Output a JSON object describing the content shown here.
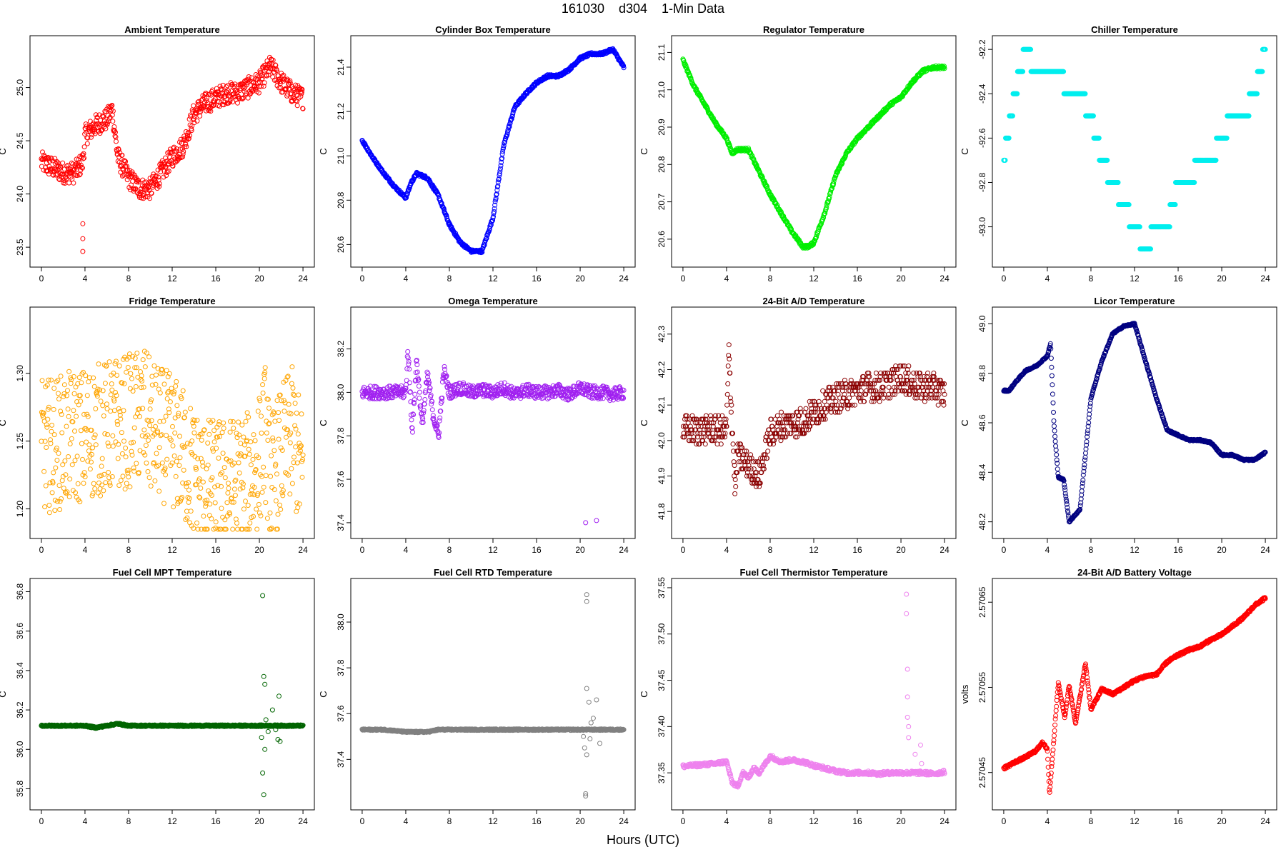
{
  "figure": {
    "title": "161030    d304    1-Min Data",
    "xlabel": "Hours (UTC)"
  },
  "chart_data": [
    {
      "type": "scatter",
      "title": "Ambient Temperature",
      "ylabel": "C",
      "color": "#ff0000",
      "xlim": [
        0,
        24
      ],
      "ylim": [
        23.4,
        25.4
      ],
      "xticks": [
        "0",
        "4",
        "8",
        "12",
        "16",
        "20",
        "24"
      ],
      "yticks": [
        "23.5",
        "24.0",
        "24.5",
        "25.0"
      ],
      "x": [
        0,
        1,
        2,
        3,
        3.8,
        4,
        5,
        6,
        6.5,
        7,
        8,
        9,
        10,
        11,
        12,
        13,
        14,
        15,
        16,
        17,
        18,
        19,
        20,
        21,
        22,
        23,
        24
      ],
      "y": [
        24.3,
        24.25,
        24.2,
        24.2,
        24.3,
        24.55,
        24.65,
        24.7,
        24.8,
        24.35,
        24.15,
        24.05,
        24.05,
        24.2,
        24.35,
        24.45,
        24.75,
        24.85,
        24.9,
        24.95,
        24.95,
        25.0,
        25.05,
        25.2,
        25.05,
        24.95,
        24.9
      ],
      "spread": 0.1,
      "outliers": [
        [
          3.8,
          23.72
        ],
        [
          3.8,
          23.58
        ],
        [
          3.8,
          23.46
        ]
      ]
    },
    {
      "type": "scatter",
      "title": "Cylinder Box Temperature",
      "ylabel": "C",
      "color": "#0000ff",
      "xlim": [
        0,
        24
      ],
      "ylim": [
        20.54,
        21.5
      ],
      "xticks": [
        "0",
        "4",
        "8",
        "12",
        "16",
        "20",
        "24"
      ],
      "yticks": [
        "20.6",
        "20.8",
        "21.0",
        "21.2",
        "21.4"
      ],
      "x": [
        0,
        1,
        2,
        3,
        4,
        4.5,
        5,
        6,
        7,
        8,
        9,
        10,
        11,
        12,
        13,
        14,
        15,
        16,
        17,
        18,
        19,
        20,
        21,
        22,
        23,
        24
      ],
      "y": [
        21.07,
        20.99,
        20.92,
        20.86,
        20.81,
        20.88,
        20.92,
        20.9,
        20.82,
        20.69,
        20.61,
        20.57,
        20.57,
        20.72,
        21.05,
        21.22,
        21.28,
        21.33,
        21.36,
        21.36,
        21.39,
        21.44,
        21.46,
        21.46,
        21.48,
        21.4
      ],
      "spread": 0.006,
      "outliers": []
    },
    {
      "type": "scatter",
      "title": "Regulator Temperature",
      "ylabel": "C",
      "color": "#00ee00",
      "xlim": [
        0,
        24
      ],
      "ylim": [
        20.55,
        21.12
      ],
      "xticks": [
        "0",
        "4",
        "8",
        "12",
        "16",
        "20",
        "24"
      ],
      "yticks": [
        "20.6",
        "20.7",
        "20.8",
        "20.9",
        "21.0",
        "21.1"
      ],
      "x": [
        0,
        1,
        2,
        3,
        4,
        4.5,
        5,
        6,
        7,
        8,
        9,
        10,
        11,
        11.5,
        12,
        13,
        14,
        15,
        16,
        17,
        18,
        19,
        20,
        21,
        22,
        23,
        24
      ],
      "y": [
        21.08,
        21.01,
        20.96,
        20.91,
        20.87,
        20.83,
        20.84,
        20.84,
        20.78,
        20.72,
        20.67,
        20.62,
        20.58,
        20.58,
        20.59,
        20.67,
        20.77,
        20.83,
        20.87,
        20.9,
        20.93,
        20.96,
        20.98,
        21.02,
        21.05,
        21.06,
        21.06
      ],
      "spread": 0.004,
      "outliers": []
    },
    {
      "type": "scatter",
      "title": "Chiller Temperature",
      "ylabel": "C",
      "color": "#00eeee",
      "xlim": [
        0,
        24
      ],
      "ylim": [
        -93.14,
        -92.18
      ],
      "xticks": [
        "0",
        "4",
        "8",
        "12",
        "16",
        "20",
        "24"
      ],
      "yticks": [
        "-92.2",
        "-92.4",
        "-92.6",
        "-92.8",
        "-93.0"
      ],
      "x": [
        0,
        0.3,
        0.7,
        1,
        2,
        3,
        4,
        5,
        6,
        7,
        8,
        9,
        10,
        11,
        12,
        13,
        14,
        15,
        16,
        17,
        18,
        19,
        20,
        21,
        22,
        23,
        24
      ],
      "y": [
        -92.7,
        -92.6,
        -92.5,
        -92.4,
        -92.2,
        -92.3,
        -92.3,
        -92.3,
        -92.4,
        -92.4,
        -92.5,
        -92.7,
        -92.8,
        -92.9,
        -93.0,
        -93.1,
        -93.0,
        -93.0,
        -92.8,
        -92.8,
        -92.7,
        -92.7,
        -92.6,
        -92.5,
        -92.5,
        -92.4,
        -92.2
      ],
      "spread": 0,
      "quantize": 0.1,
      "outliers": []
    },
    {
      "type": "scatter",
      "title": "Fridge Temperature",
      "ylabel": "C",
      "color": "#ffa500",
      "xlim": [
        0,
        24
      ],
      "ylim": [
        1.185,
        1.342
      ],
      "xticks": [
        "0",
        "4",
        "8",
        "12",
        "16",
        "20",
        "24"
      ],
      "yticks": [
        "1.20",
        "1.25",
        "1.30"
      ],
      "x": [
        0,
        2,
        4,
        6,
        8,
        9.5,
        10,
        11,
        12,
        13,
        14,
        15,
        16,
        17,
        18,
        19,
        20,
        20.5,
        21,
        21.5,
        22,
        22.5,
        23,
        23.5,
        24
      ],
      "y": [
        1.245,
        1.25,
        1.255,
        1.26,
        1.265,
        1.27,
        1.26,
        1.255,
        1.25,
        1.24,
        1.225,
        1.218,
        1.217,
        1.218,
        1.219,
        1.222,
        1.235,
        1.26,
        1.22,
        1.23,
        1.24,
        1.25,
        1.255,
        1.24,
        1.222
      ],
      "spread": 0.05,
      "outliers": []
    },
    {
      "type": "scatter",
      "title": "Omega Temperature",
      "ylabel": "C",
      "color": "#a020f0",
      "xlim": [
        0,
        24
      ],
      "ylim": [
        37.37,
        38.35
      ],
      "xticks": [
        "0",
        "4",
        "8",
        "12",
        "16",
        "20",
        "24"
      ],
      "yticks": [
        "37.4",
        "37.6",
        "37.8",
        "38.0",
        "38.2"
      ],
      "x": [
        0,
        1,
        2,
        3,
        4,
        4.2,
        4.6,
        5,
        5.5,
        6,
        6.5,
        7,
        7.5,
        8,
        9,
        10,
        11,
        12,
        13,
        14,
        15,
        16,
        17,
        18,
        19,
        20,
        21,
        22,
        23,
        24
      ],
      "y": [
        38.0,
        38.0,
        38.0,
        38.0,
        38.0,
        38.2,
        37.82,
        38.15,
        37.85,
        38.08,
        37.9,
        37.8,
        38.1,
        38.0,
        38.02,
        38.0,
        38.01,
        38.0,
        38.02,
        37.99,
        38.01,
        38.0,
        38.0,
        38.01,
        37.99,
        38.02,
        38.0,
        38.0,
        37.99,
        38.0
      ],
      "spread": 0.03,
      "outliers": [
        [
          20.5,
          37.4
        ],
        [
          21.5,
          37.41
        ]
      ]
    },
    {
      "type": "scatter",
      "title": "24-Bit A/D Temperature",
      "ylabel": "C",
      "color": "#8b0000",
      "xlim": [
        0,
        24
      ],
      "ylim": [
        41.75,
        42.35
      ],
      "xticks": [
        "0",
        "4",
        "8",
        "12",
        "16",
        "20",
        "24"
      ],
      "yticks": [
        "41.8",
        "41.9",
        "42.0",
        "42.1",
        "42.2",
        "42.3"
      ],
      "x": [
        0,
        1,
        2,
        3,
        4,
        4.2,
        4.8,
        5,
        6,
        7,
        8,
        9,
        10,
        11,
        12,
        13,
        14,
        15,
        16,
        17,
        18,
        19,
        20,
        21,
        22,
        23,
        24
      ],
      "y": [
        42.03,
        42.03,
        42.03,
        42.03,
        42.03,
        42.25,
        41.86,
        41.96,
        41.93,
        41.9,
        42.02,
        42.04,
        42.05,
        42.05,
        42.08,
        42.1,
        42.12,
        42.13,
        42.14,
        42.15,
        42.15,
        42.16,
        42.18,
        42.16,
        42.15,
        42.15,
        42.13
      ],
      "spread": 0.04,
      "quantize": 0.01,
      "outliers": []
    },
    {
      "type": "scatter",
      "title": "Licor Temperature",
      "ylabel": "C",
      "color": "#000080",
      "xlim": [
        0,
        24
      ],
      "ylim": [
        48.17,
        49.03
      ],
      "xticks": [
        "0",
        "4",
        "8",
        "12",
        "16",
        "20",
        "24"
      ],
      "yticks": [
        "48.2",
        "48.4",
        "48.6",
        "48.8",
        "49.0"
      ],
      "x": [
        0,
        0.5,
        1,
        2,
        3,
        4,
        4.3,
        4.6,
        5,
        5.5,
        6,
        7,
        8,
        9,
        10,
        11,
        12,
        13,
        14,
        15,
        16,
        17,
        18,
        19,
        20,
        21,
        22,
        23,
        24
      ],
      "y": [
        48.73,
        48.73,
        48.76,
        48.81,
        48.83,
        48.87,
        48.92,
        48.6,
        48.38,
        48.37,
        48.2,
        48.25,
        48.7,
        48.85,
        48.96,
        48.99,
        49.0,
        48.85,
        48.7,
        48.57,
        48.55,
        48.53,
        48.53,
        48.52,
        48.47,
        48.47,
        48.45,
        48.45,
        48.48
      ],
      "spread": 0.003,
      "outliers": []
    },
    {
      "type": "scatter",
      "title": "Fuel Cell MPT Temperature",
      "ylabel": "C",
      "color": "#006400",
      "xlim": [
        0,
        24
      ],
      "ylim": [
        35.74,
        36.82
      ],
      "xticks": [
        "0",
        "4",
        "8",
        "12",
        "16",
        "20",
        "24"
      ],
      "yticks": [
        "35.8",
        "36.0",
        "36.2",
        "36.4",
        "36.6",
        "36.8"
      ],
      "x": [
        0,
        2,
        4,
        5,
        6,
        7,
        8,
        10,
        12,
        14,
        16,
        18,
        20,
        22,
        24
      ],
      "y": [
        36.12,
        36.12,
        36.12,
        36.11,
        36.12,
        36.13,
        36.12,
        36.12,
        36.12,
        36.12,
        36.12,
        36.12,
        36.12,
        36.12,
        36.12
      ],
      "spread": 0.004,
      "outliers": [
        [
          20.3,
          36.78
        ],
        [
          20.4,
          36.37
        ],
        [
          20.5,
          36.33
        ],
        [
          20.3,
          35.88
        ],
        [
          20.4,
          35.77
        ],
        [
          21.8,
          36.27
        ],
        [
          21.7,
          36.05
        ],
        [
          20.6,
          36.15
        ],
        [
          20.2,
          36.06
        ],
        [
          20.5,
          36.0
        ],
        [
          21.2,
          36.2
        ],
        [
          21.5,
          36.1
        ],
        [
          20.8,
          36.09
        ],
        [
          21.9,
          36.04
        ]
      ]
    },
    {
      "type": "scatter",
      "title": "Fuel Cell RTD Temperature",
      "ylabel": "C",
      "color": "#808080",
      "xlim": [
        0,
        24
      ],
      "ylim": [
        37.22,
        38.15
      ],
      "xticks": [
        "0",
        "4",
        "8",
        "12",
        "16",
        "20",
        "24"
      ],
      "yticks": [
        "37.4",
        "37.6",
        "37.8",
        "38.0"
      ],
      "x": [
        0,
        2,
        4,
        5,
        6,
        7,
        8,
        10,
        12,
        14,
        16,
        18,
        20,
        22,
        24
      ],
      "y": [
        37.53,
        37.53,
        37.52,
        37.52,
        37.52,
        37.53,
        37.53,
        37.53,
        37.53,
        37.53,
        37.53,
        37.53,
        37.53,
        37.53,
        37.53
      ],
      "spread": 0.003,
      "outliers": [
        [
          20.6,
          38.12
        ],
        [
          20.6,
          38.09
        ],
        [
          20.6,
          37.71
        ],
        [
          20.5,
          37.25
        ],
        [
          20.5,
          37.24
        ],
        [
          20.6,
          37.42
        ],
        [
          21.5,
          37.66
        ],
        [
          20.8,
          37.65
        ],
        [
          21.2,
          37.58
        ],
        [
          20.4,
          37.45
        ],
        [
          20.9,
          37.49
        ],
        [
          21.8,
          37.47
        ],
        [
          20.3,
          37.5
        ],
        [
          21.0,
          37.56
        ]
      ]
    },
    {
      "type": "scatter",
      "title": "Fuel Cell Thermistor Temperature",
      "ylabel": "C",
      "color": "#ee82ee",
      "xlim": [
        0,
        24
      ],
      "ylim": [
        37.32,
        37.55
      ],
      "xticks": [
        "0",
        "4",
        "8",
        "12",
        "16",
        "20",
        "24"
      ],
      "yticks": [
        "37.35",
        "37.40",
        "37.45",
        "37.50",
        "37.55"
      ],
      "x": [
        0,
        1,
        2,
        3,
        4,
        4.5,
        5,
        5.5,
        6,
        6.5,
        7,
        8,
        9,
        10,
        11,
        12,
        13,
        14,
        15,
        16,
        17,
        18,
        19,
        20,
        21,
        22,
        23,
        24
      ],
      "y": [
        37.357,
        37.358,
        37.359,
        37.36,
        37.362,
        37.34,
        37.335,
        37.35,
        37.345,
        37.355,
        37.35,
        37.368,
        37.362,
        37.364,
        37.362,
        37.358,
        37.355,
        37.352,
        37.35,
        37.35,
        37.35,
        37.349,
        37.35,
        37.35,
        37.35,
        37.35,
        37.349,
        37.351
      ],
      "spread": 0.002,
      "outliers": [
        [
          20.5,
          37.543
        ],
        [
          20.5,
          37.522
        ],
        [
          20.6,
          37.462
        ],
        [
          20.6,
          37.432
        ],
        [
          20.6,
          37.41
        ],
        [
          20.7,
          37.4
        ],
        [
          20.7,
          37.388
        ],
        [
          21.8,
          37.38
        ],
        [
          21.3,
          37.37
        ],
        [
          21.9,
          37.36
        ]
      ]
    },
    {
      "type": "scatter",
      "title": "24-Bit A/D Battery Voltage",
      "ylabel": "volts",
      "color": "#ff0000",
      "xlim": [
        0,
        24
      ],
      "ylim": [
        2.570417,
        2.570667
      ],
      "xticks": [
        "0",
        "4",
        "8",
        "12",
        "16",
        "20",
        "24"
      ],
      "yticks": [
        "2.57045",
        "2.57055",
        "2.57065"
      ],
      "x": [
        0,
        1,
        2,
        3,
        3.5,
        4,
        4.2,
        5,
        5.6,
        6,
        6.6,
        7.5,
        8,
        9,
        10,
        11,
        12,
        13,
        14,
        15,
        16,
        17,
        18,
        19,
        20,
        21,
        22,
        23,
        24
      ],
      "y": [
        2.570455,
        2.570462,
        2.570468,
        2.570476,
        2.570485,
        2.570478,
        2.570425,
        2.570555,
        2.570515,
        2.570552,
        2.570508,
        2.570578,
        2.570524,
        2.570548,
        2.570542,
        2.57055,
        2.570558,
        2.570563,
        2.570565,
        2.57058,
        2.570588,
        2.570594,
        2.570598,
        2.570606,
        2.570612,
        2.570622,
        2.570632,
        2.570646,
        2.570655
      ],
      "spread": 1.5e-06,
      "outliers": []
    }
  ]
}
